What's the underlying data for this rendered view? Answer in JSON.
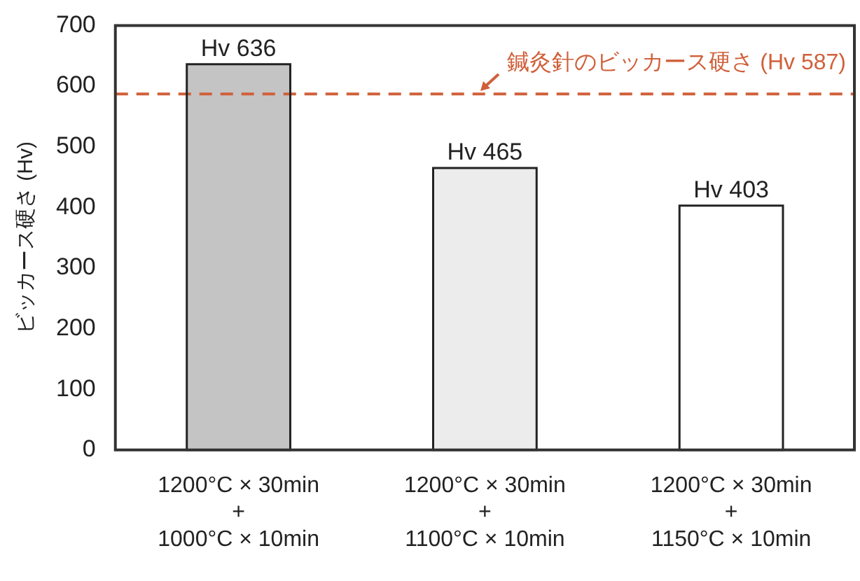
{
  "chart_data": {
    "type": "bar",
    "ylabel": "ビッカース硬さ (Hv)",
    "categories": [
      "1200°C × 30min\n+\n1000°C × 10min",
      "1200°C × 30min\n+\n1100°C × 10min",
      "1200°C × 30min\n+\n1150°C × 10min"
    ],
    "values": [
      636,
      465,
      403
    ],
    "colors": [
      "#c4c4c4",
      "#ececec",
      "#ffffff"
    ],
    "value_labels": [
      "Hv 636",
      "Hv 465",
      "Hv 403"
    ],
    "ylim": [
      0,
      700
    ],
    "yticks": [
      0,
      100,
      200,
      300,
      400,
      500,
      600,
      700
    ],
    "grid": false,
    "legend": false,
    "ref_lines": [
      {
        "axis": "y",
        "value": 587,
        "label": "鍼灸針のビッカース硬さ (Hv 587)",
        "color": "#d0603a",
        "line_style": "dashed"
      }
    ]
  }
}
